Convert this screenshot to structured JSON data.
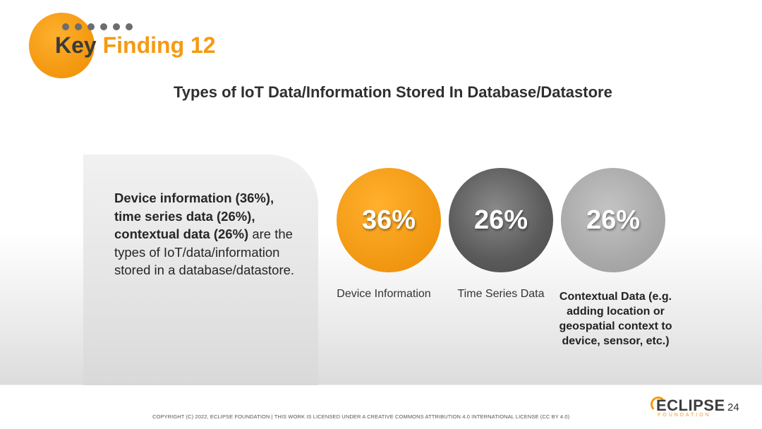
{
  "header": {
    "title_word1": "Key",
    "title_word2": "Finding 12",
    "dot_count": 6
  },
  "subtitle": "Types of IoT Data/Information Stored In Database/Datastore",
  "summary": {
    "bold1": "Device information (36%),",
    "bold2": "time series data (26%),",
    "bold3": "contextual data (26%)",
    "rest": " are the types of IoT/data/information stored in a database/datastore."
  },
  "stats": [
    {
      "value": "36%",
      "label": "Device Information",
      "color": "#f39a14"
    },
    {
      "value": "26%",
      "label": "Time Series Data",
      "color": "#5a5a5a"
    },
    {
      "value": "26%",
      "label": "Contextual Data (e.g. adding location or geospatial context to device, sensor, etc.)",
      "color": "#a9a9a9"
    }
  ],
  "footer": {
    "copyright": "COPYRIGHT (C) 2022, ECLIPSE FOUNDATION | THIS WORK IS LICENSED UNDER A CREATIVE COMMONS ATTRIBUTION 4.0 INTERNATIONAL LICENSE (CC BY 4.0)",
    "logo_text": "ECLIPSE",
    "logo_sub": "FOUNDATION",
    "page_number": "24"
  }
}
